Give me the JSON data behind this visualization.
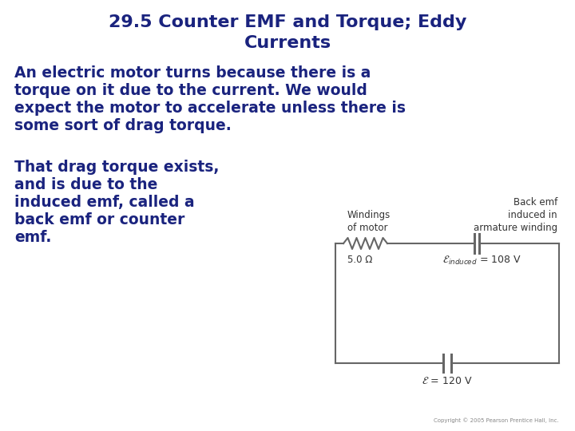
{
  "title_line1": "29.5 Counter EMF and Torque; Eddy",
  "title_line2": "Currents",
  "title_color": "#1a237e",
  "title_fontsize": 16,
  "body_color": "#1a237e",
  "body_fontsize": 13.5,
  "para1_line1": "An electric motor turns because there is a",
  "para1_line2": "torque on it due to the current. We would",
  "para1_line3": "expect the motor to accelerate unless there is",
  "para1_line4": "some sort of drag torque.",
  "para2_line1": "That drag torque exists,",
  "para2_line2": "and is due to the",
  "para2_line3": "induced emf, called a",
  "para2_line4": "back emf or counter",
  "para2_line5": "emf.",
  "bg_color": "#ffffff",
  "circuit_label_windings": "Windings\nof motor",
  "circuit_label_back_emf": "Back emf\ninduced in\narmature winding",
  "circuit_label_resistance": "5.0 Ω",
  "circuit_label_emf_induced": "= 108 V",
  "circuit_label_emf_source": "= 120 V",
  "circuit_label_color": "#333333",
  "circuit_color": "#666666",
  "copyright": "Copyright © 2005 Pearson Prentice Hall, Inc."
}
